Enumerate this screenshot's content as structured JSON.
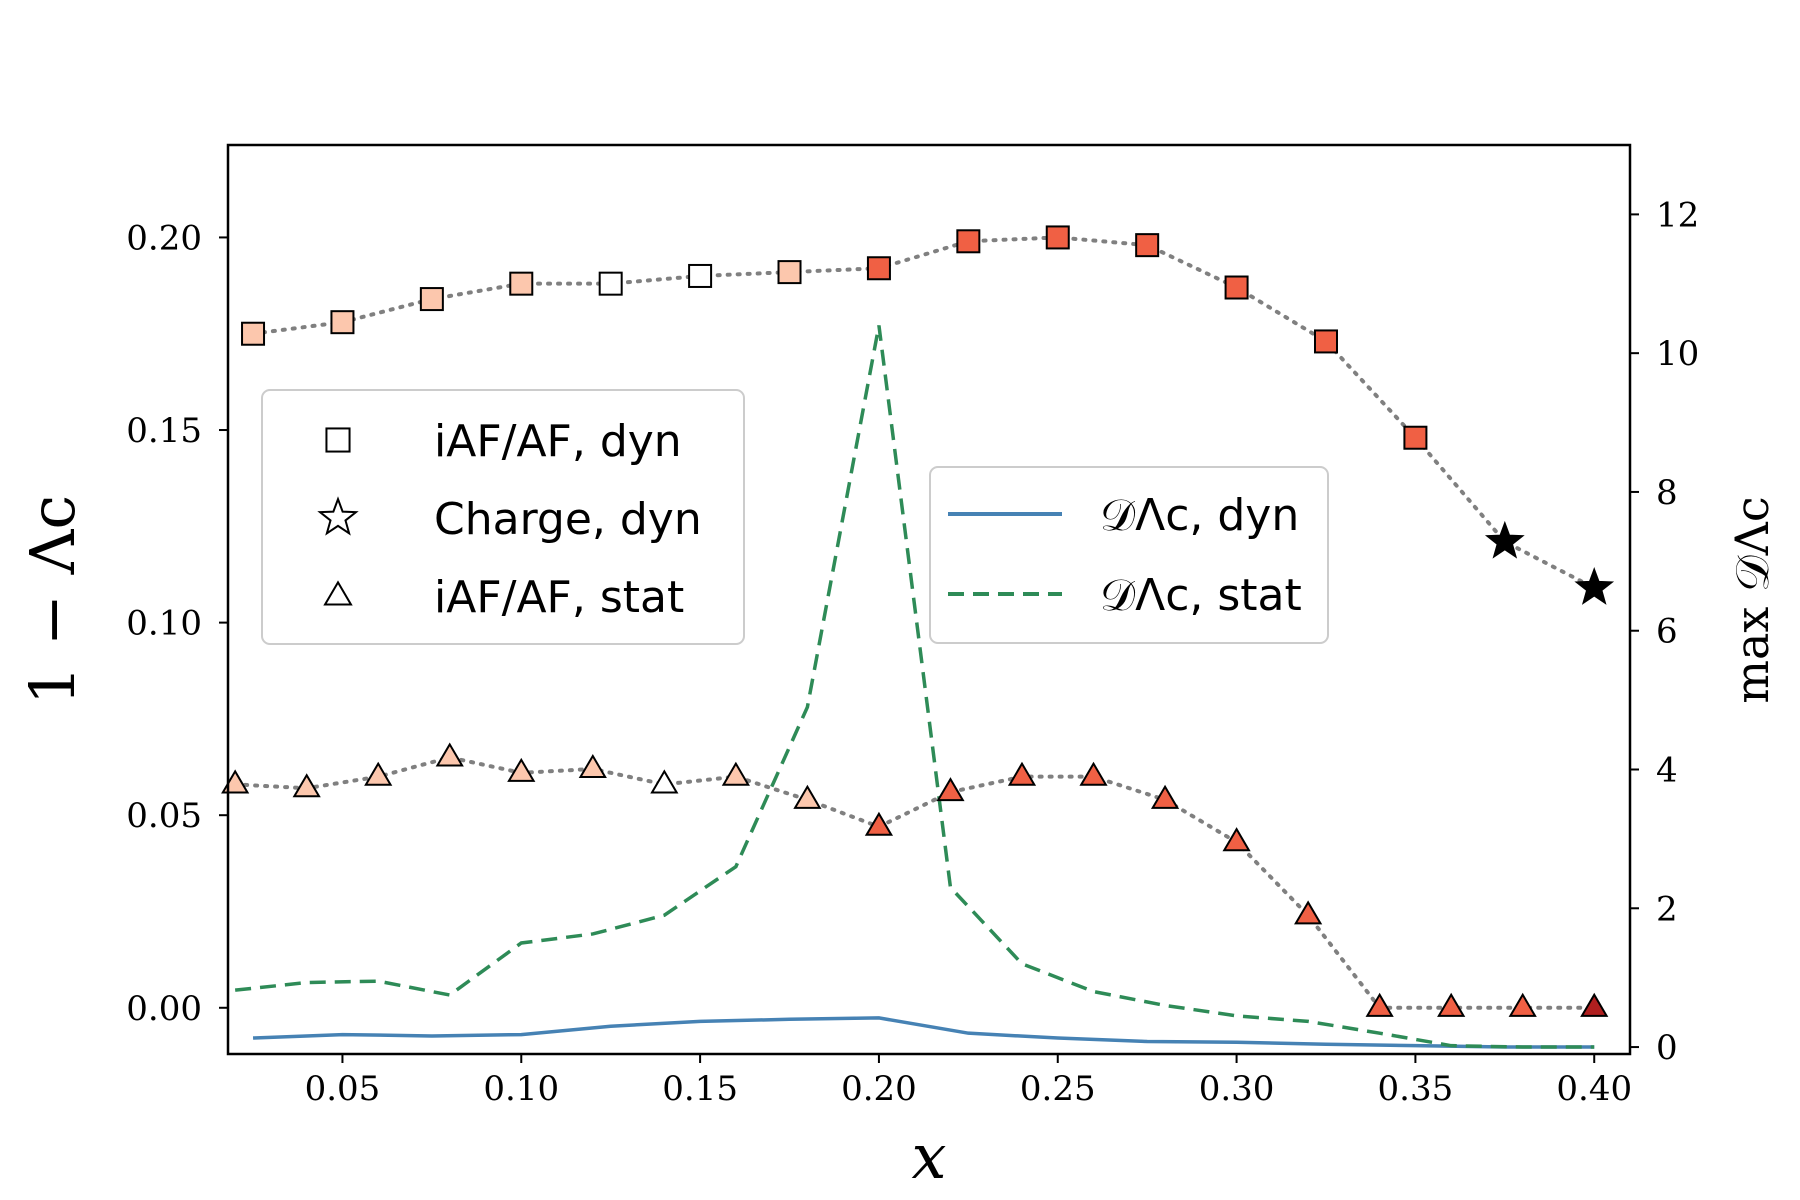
{
  "chart_data": {
    "type": "scatter",
    "xlabel": "x",
    "ylabel_left": "1 − Λc",
    "ylabel_right": "max 𝒟Λc",
    "xlim": [
      0.018,
      0.41
    ],
    "ylim_left": [
      -0.012,
      0.224
    ],
    "ylim_right": [
      -0.1,
      13.0
    ],
    "xticks": [
      0.05,
      0.1,
      0.15,
      0.2,
      0.25,
      0.3,
      0.35,
      0.4
    ],
    "xtick_labels": [
      "0.05",
      "0.10",
      "0.15",
      "0.20",
      "0.25",
      "0.30",
      "0.35",
      "0.40"
    ],
    "yticks_left": [
      0.0,
      0.05,
      0.1,
      0.15,
      0.2
    ],
    "yticks_left_labels": [
      "0.00",
      "0.05",
      "0.10",
      "0.15",
      "0.20"
    ],
    "yticks_right": [
      0,
      2,
      4,
      6,
      8,
      10,
      12
    ],
    "yticks_right_labels": [
      "0",
      "2",
      "4",
      "6",
      "8",
      "10",
      "12"
    ],
    "grid": false,
    "colors": {
      "light": "#fcc7ad",
      "medium": "#f57f5e",
      "strong": "#f06044",
      "dark": "#b01f1f",
      "white": "#ffffff",
      "dotted": "#808080",
      "dyn_line": "#4682b4",
      "stat_line": "#2e8b57"
    },
    "series": [
      {
        "name": "iAF/AF, dyn",
        "marker": "square",
        "axis": "left",
        "points": [
          {
            "x": 0.025,
            "y": 0.175,
            "fill": "light"
          },
          {
            "x": 0.05,
            "y": 0.178,
            "fill": "light"
          },
          {
            "x": 0.075,
            "y": 0.184,
            "fill": "light"
          },
          {
            "x": 0.1,
            "y": 0.188,
            "fill": "light"
          },
          {
            "x": 0.125,
            "y": 0.188,
            "fill": "white"
          },
          {
            "x": 0.15,
            "y": 0.19,
            "fill": "white"
          },
          {
            "x": 0.175,
            "y": 0.191,
            "fill": "light"
          },
          {
            "x": 0.2,
            "y": 0.192,
            "fill": "strong"
          },
          {
            "x": 0.225,
            "y": 0.199,
            "fill": "strong"
          },
          {
            "x": 0.25,
            "y": 0.2,
            "fill": "strong"
          },
          {
            "x": 0.275,
            "y": 0.198,
            "fill": "strong"
          },
          {
            "x": 0.3,
            "y": 0.187,
            "fill": "strong"
          },
          {
            "x": 0.325,
            "y": 0.173,
            "fill": "strong"
          },
          {
            "x": 0.35,
            "y": 0.148,
            "fill": "strong"
          }
        ]
      },
      {
        "name": "Charge, dyn",
        "marker": "star",
        "axis": "left",
        "points": [
          {
            "x": 0.375,
            "y": 0.121,
            "fill": "black"
          },
          {
            "x": 0.4,
            "y": 0.109,
            "fill": "black"
          }
        ]
      },
      {
        "name": "iAF/AF, stat",
        "marker": "triangle",
        "axis": "left",
        "points": [
          {
            "x": 0.02,
            "y": 0.058,
            "fill": "light"
          },
          {
            "x": 0.04,
            "y": 0.057,
            "fill": "light"
          },
          {
            "x": 0.06,
            "y": 0.06,
            "fill": "light"
          },
          {
            "x": 0.08,
            "y": 0.065,
            "fill": "light"
          },
          {
            "x": 0.1,
            "y": 0.061,
            "fill": "light"
          },
          {
            "x": 0.12,
            "y": 0.062,
            "fill": "light"
          },
          {
            "x": 0.14,
            "y": 0.058,
            "fill": "white"
          },
          {
            "x": 0.16,
            "y": 0.06,
            "fill": "light"
          },
          {
            "x": 0.18,
            "y": 0.054,
            "fill": "light"
          },
          {
            "x": 0.2,
            "y": 0.047,
            "fill": "strong"
          },
          {
            "x": 0.22,
            "y": 0.056,
            "fill": "strong"
          },
          {
            "x": 0.24,
            "y": 0.06,
            "fill": "strong"
          },
          {
            "x": 0.26,
            "y": 0.06,
            "fill": "strong"
          },
          {
            "x": 0.28,
            "y": 0.054,
            "fill": "strong"
          },
          {
            "x": 0.3,
            "y": 0.043,
            "fill": "strong"
          },
          {
            "x": 0.32,
            "y": 0.024,
            "fill": "strong"
          },
          {
            "x": 0.34,
            "y": 0.0,
            "fill": "strong"
          },
          {
            "x": 0.36,
            "y": 0.0,
            "fill": "strong"
          },
          {
            "x": 0.38,
            "y": 0.0,
            "fill": "strong"
          },
          {
            "x": 0.4,
            "y": 0.0,
            "fill": "dark"
          }
        ]
      },
      {
        "name": "𝒟Λc, dyn",
        "style": "solid",
        "color": "dyn_line",
        "axis": "right",
        "x": [
          0.025,
          0.05,
          0.075,
          0.1,
          0.125,
          0.15,
          0.175,
          0.2,
          0.225,
          0.25,
          0.275,
          0.3,
          0.325,
          0.35,
          0.375,
          0.4
        ],
        "y": [
          0.13,
          0.18,
          0.16,
          0.18,
          0.3,
          0.37,
          0.4,
          0.42,
          0.2,
          0.13,
          0.08,
          0.07,
          0.04,
          0.02,
          0.0,
          0.0
        ]
      },
      {
        "name": "𝒟Λc, stat",
        "style": "dashed",
        "color": "stat_line",
        "axis": "right",
        "x": [
          0.02,
          0.04,
          0.06,
          0.08,
          0.1,
          0.12,
          0.14,
          0.16,
          0.18,
          0.2,
          0.22,
          0.24,
          0.26,
          0.28,
          0.3,
          0.32,
          0.34,
          0.36,
          0.38,
          0.4
        ],
        "y": [
          0.82,
          0.93,
          0.95,
          0.75,
          1.5,
          1.63,
          1.9,
          2.6,
          4.9,
          10.4,
          2.3,
          1.2,
          0.8,
          0.6,
          0.45,
          0.37,
          0.2,
          0.02,
          0.0,
          0.0
        ]
      }
    ],
    "legend_markers": {
      "position": "left",
      "entries": [
        {
          "label": "iAF/AF, dyn",
          "marker": "square"
        },
        {
          "label": "Charge, dyn",
          "marker": "star"
        },
        {
          "label": "iAF/AF, stat",
          "marker": "triangle"
        }
      ]
    },
    "legend_lines": {
      "position": "center-right",
      "entries": [
        {
          "label": "𝒟Λc, dyn",
          "style": "solid",
          "color": "dyn_line"
        },
        {
          "label": "𝒟Λc, stat",
          "style": "dashed",
          "color": "stat_line"
        }
      ]
    }
  }
}
